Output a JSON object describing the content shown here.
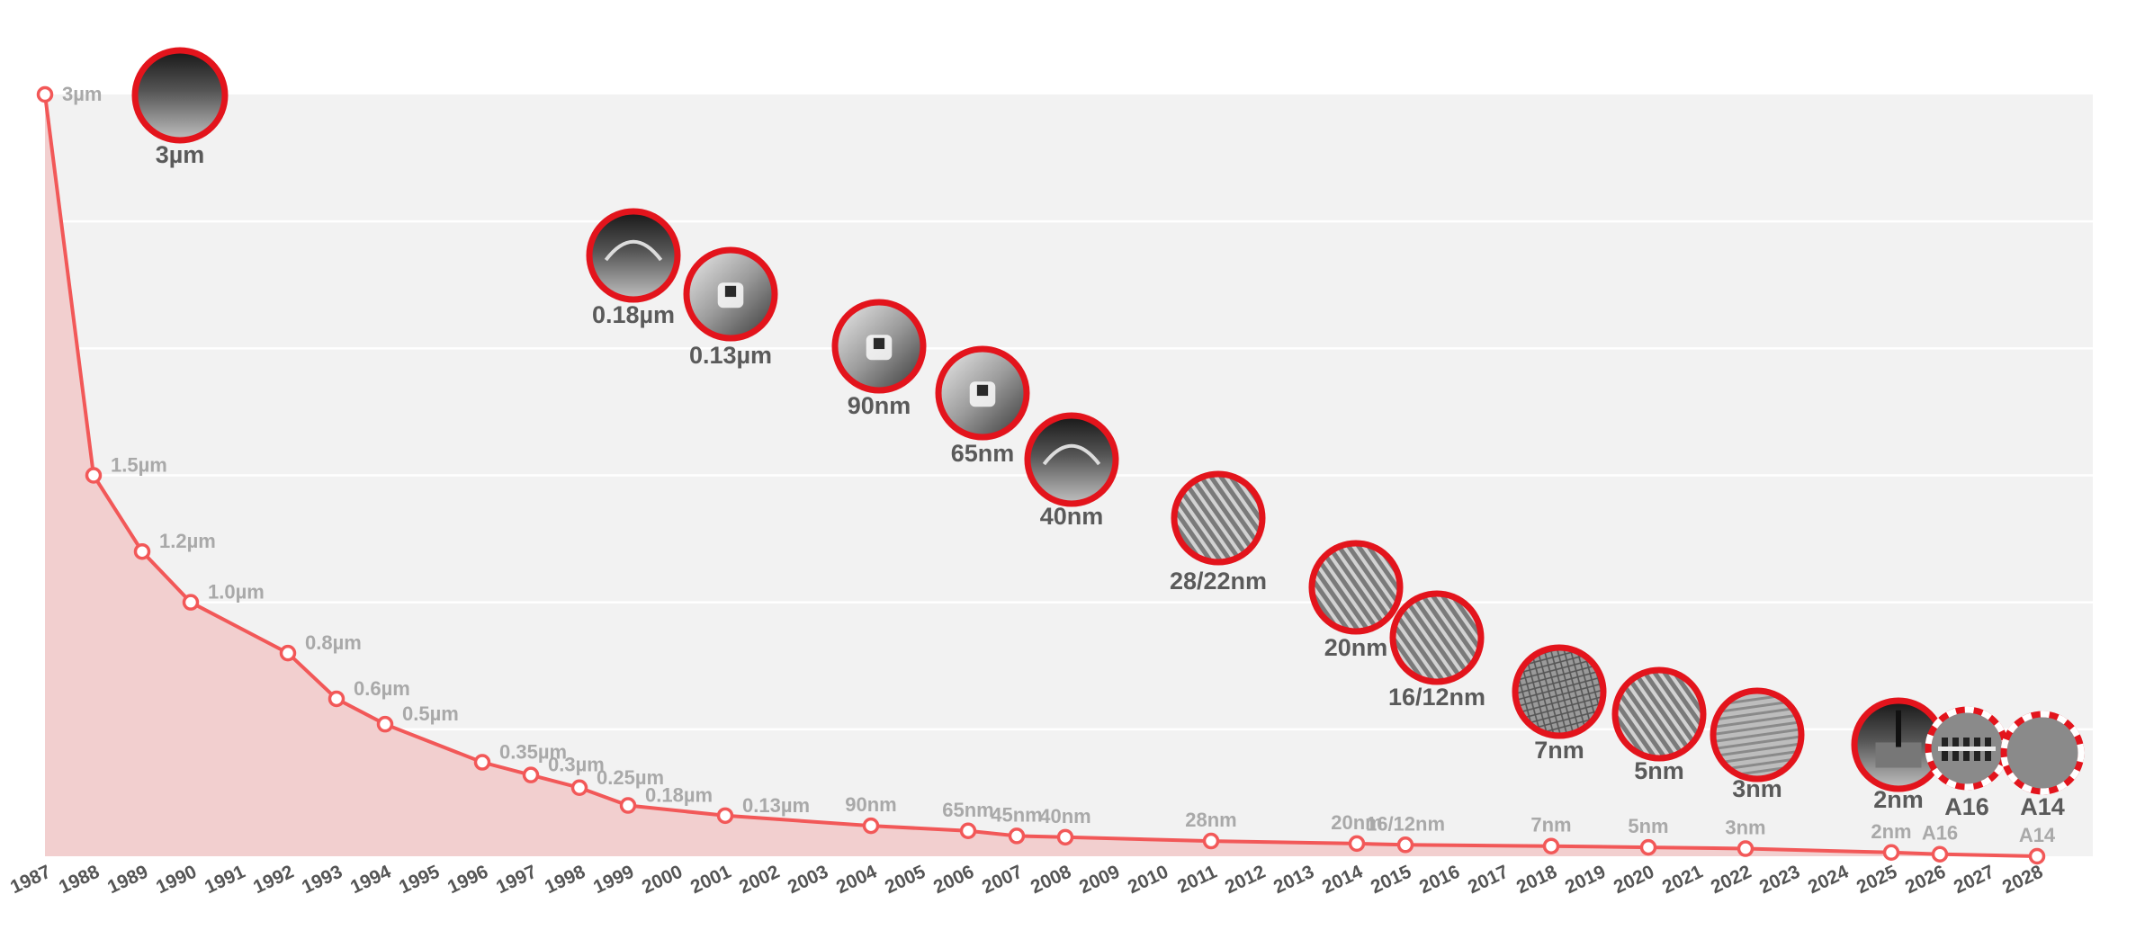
{
  "chart_data": {
    "type": "area",
    "title": "",
    "xlabel": "",
    "ylabel": "",
    "colors": {
      "line": "#f25858",
      "fill": "#f2cfcf",
      "plot_bg": "#f2f2f2",
      "node_ring": "#e3141c",
      "node_fill": "#8a8a8a"
    },
    "x_years": [
      "1987",
      "1988",
      "1989",
      "1990",
      "1991",
      "1992",
      "1993",
      "1994",
      "1995",
      "1996",
      "1997",
      "1998",
      "1999",
      "2000",
      "2001",
      "2002",
      "2003",
      "2004",
      "2005",
      "2006",
      "2007",
      "2008",
      "2009",
      "2010",
      "2011",
      "2012",
      "2013",
      "2014",
      "2015",
      "2016",
      "2017",
      "2018",
      "2019",
      "2020",
      "2021",
      "2022",
      "2023",
      "2024",
      "2025",
      "2026",
      "2027",
      "2028"
    ],
    "points": [
      {
        "year": 1987,
        "label": "3µm",
        "nm": 3000
      },
      {
        "year": 1988,
        "label": "1.5µm",
        "nm": 1500
      },
      {
        "year": 1989,
        "label": "1.2µm",
        "nm": 1200
      },
      {
        "year": 1990,
        "label": "1.0µm",
        "nm": 1000
      },
      {
        "year": 1992,
        "label": "0.8µm",
        "nm": 800
      },
      {
        "year": 1993,
        "label": "0.6µm",
        "nm": 620
      },
      {
        "year": 1994,
        "label": "0.5µm",
        "nm": 520
      },
      {
        "year": 1996,
        "label": "0.35µm",
        "nm": 370
      },
      {
        "year": 1997,
        "label": "0.3µm",
        "nm": 320
      },
      {
        "year": 1998,
        "label": "0.25µm",
        "nm": 270
      },
      {
        "year": 1999,
        "label": "0.18µm",
        "nm": 200
      },
      {
        "year": 2001,
        "label": "0.13µm",
        "nm": 160
      },
      {
        "year": 2004,
        "label": "90nm",
        "nm": 120
      },
      {
        "year": 2006,
        "label": "65nm",
        "nm": 100
      },
      {
        "year": 2007,
        "label": "45nm",
        "nm": 80
      },
      {
        "year": 2008,
        "label": "40nm",
        "nm": 75
      },
      {
        "year": 2011,
        "label": "28nm",
        "nm": 60
      },
      {
        "year": 2014,
        "label": "20nm",
        "nm": 50
      },
      {
        "year": 2015,
        "label": "16/12nm",
        "nm": 45
      },
      {
        "year": 2018,
        "label": "7nm",
        "nm": 40
      },
      {
        "year": 2020,
        "label": "5nm",
        "nm": 35
      },
      {
        "year": 2022,
        "label": "3nm",
        "nm": 30
      },
      {
        "year": 2025,
        "label": "2nm",
        "nm": 15
      },
      {
        "year": 2026,
        "label": "A16",
        "nm": 8
      },
      {
        "year": 2028,
        "label": "A14",
        "nm": 0
      }
    ],
    "ylim": [
      0,
      3000
    ],
    "gridlines_nm": [
      500,
      1000,
      1500,
      2000,
      2500
    ],
    "node_images": [
      {
        "label": "3µm",
        "style": "sem-dark"
      },
      {
        "label": "0.18µm",
        "style": "sem-dark"
      },
      {
        "label": "0.13µm",
        "style": "sem-light"
      },
      {
        "label": "90nm",
        "style": "sem-light"
      },
      {
        "label": "65nm",
        "style": "sem-light"
      },
      {
        "label": "40nm",
        "style": "sem-dark"
      },
      {
        "label": "28/22nm",
        "style": "fin"
      },
      {
        "label": "20nm",
        "style": "fin"
      },
      {
        "label": "16/12nm",
        "style": "fin"
      },
      {
        "label": "7nm",
        "style": "mesh"
      },
      {
        "label": "5nm",
        "style": "fin"
      },
      {
        "label": "3nm",
        "style": "stripes"
      },
      {
        "label": "2nm",
        "style": "sem-dark"
      },
      {
        "label": "A16",
        "style": "future",
        "dashed": true
      },
      {
        "label": "A14",
        "style": "future",
        "dashed": true
      }
    ]
  }
}
